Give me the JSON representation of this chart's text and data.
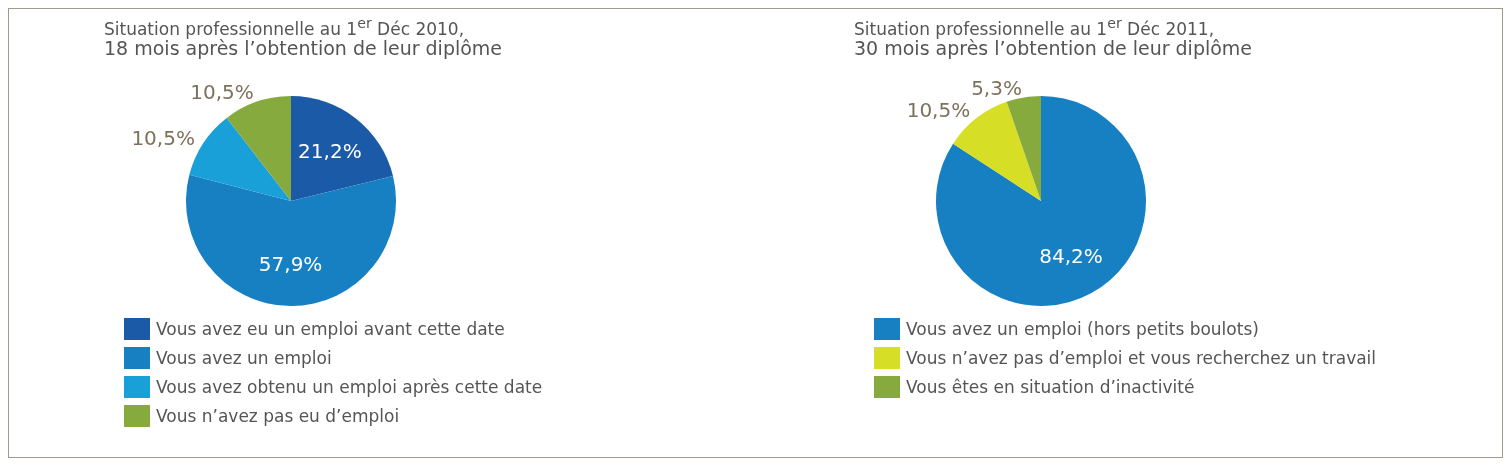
{
  "chart_data": [
    {
      "type": "pie",
      "title": "Situation professionnelle au 1$^{er}$ Déc 2010,",
      "subtitle": "18 mois après l’obtention de leur diplôme",
      "categories": [
        "Vous avez eu un emploi avant cette date",
        "Vous avez un emploi",
        "Vous avez obtenu un emploi après cette date",
        "Vous n’avez pas eu d’emploi"
      ],
      "values": [
        21.2,
        57.9,
        10.5,
        10.5
      ],
      "colors": [
        "#1a5aa6",
        "#1780c2",
        "#19a0d9",
        "#86aa3e"
      ],
      "value_labels": [
        "21,2%",
        "57,9%",
        "10,5%",
        "10,5%"
      ],
      "legend": "bottom"
    },
    {
      "type": "pie",
      "title": "Situation professionnelle au 1$^{er}$ Déc 2011,",
      "subtitle": "30 mois après l’obtention de leur diplôme",
      "categories": [
        "Vous avez un emploi (hors petits boulots)",
        "Vous n’avez pas d’emploi et vous recherchez un travail",
        "Vous êtes en situation d’inactivité"
      ],
      "values": [
        84.2,
        10.5,
        5.3
      ],
      "colors": [
        "#1780c2",
        "#d6de26",
        "#86aa3e"
      ],
      "value_labels": [
        "84,2%",
        "10,5%",
        "5,3%"
      ],
      "legend": "bottom"
    }
  ]
}
